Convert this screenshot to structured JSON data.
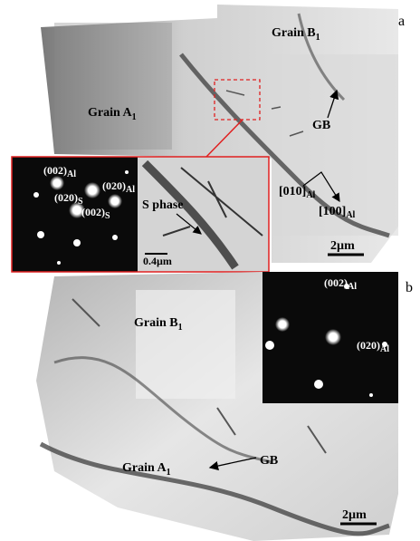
{
  "panel_a": {
    "label": "a",
    "grain_b": {
      "text": "Grain B",
      "sub": "1"
    },
    "grain_a": {
      "text": "Grain A",
      "sub": "1"
    },
    "gb": "GB",
    "dir_010": {
      "text": "[010]",
      "sub": "Al"
    },
    "dir_100": {
      "text": "[100]",
      "sub": "Al"
    },
    "scale": "2µm",
    "inset": {
      "spot_002_al": {
        "text": "(002)",
        "sub": "Al"
      },
      "spot_020_al": {
        "text": "(020)",
        "sub": "Al"
      },
      "spot_020_s": {
        "text": "(020)",
        "sub": "S"
      },
      "spot_002_s": {
        "text": "(002)",
        "sub": "S"
      },
      "s_phase": "S phase",
      "scale": "0.4µm"
    }
  },
  "panel_b": {
    "label": "b",
    "grain_b": {
      "text": "Grain B",
      "sub": "1"
    },
    "grain_a": {
      "text": "Grain A",
      "sub": "1"
    },
    "gb": "GB",
    "spot_002_al": {
      "text": "(002)",
      "sub": "Al"
    },
    "spot_020_al": {
      "text": "(020)",
      "sub": "Al"
    },
    "scale": "2µm"
  }
}
